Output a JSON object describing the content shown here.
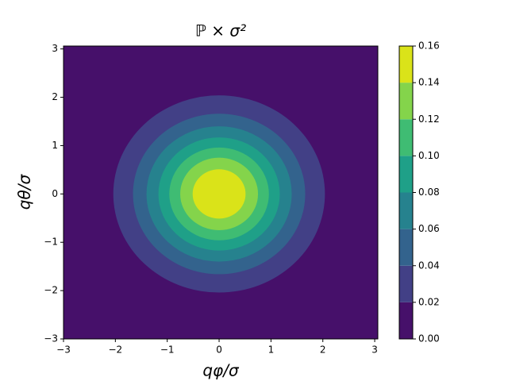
{
  "chart_data": {
    "type": "contourf",
    "title": "ℙ × σ²",
    "xlabel": "qφ/σ",
    "ylabel": "qθ/σ",
    "xlim": [
      -3,
      3.06
    ],
    "ylim": [
      -3,
      3.06
    ],
    "xticks": [
      {
        "value": -3,
        "label": "−3"
      },
      {
        "value": -2,
        "label": "−2"
      },
      {
        "value": -1,
        "label": "−1"
      },
      0,
      1,
      2,
      3
    ],
    "yticks": [
      {
        "value": -3,
        "label": "−3"
      },
      {
        "value": -2,
        "label": "−2"
      },
      {
        "value": -1,
        "label": "−1"
      },
      0,
      1,
      2,
      3
    ],
    "center": [
      0,
      0
    ],
    "levels": [
      {
        "value": 0,
        "label": "0.00"
      },
      {
        "value": 0.02,
        "label": "0.02"
      },
      {
        "value": 0.04,
        "label": "0.04"
      },
      {
        "value": 0.06,
        "label": "0.06"
      },
      {
        "value": 0.08,
        "label": "0.08"
      },
      {
        "value": 0.1,
        "label": "0.10"
      },
      {
        "value": 0.12,
        "label": "0.12"
      },
      {
        "value": 0.14,
        "label": "0.14"
      },
      {
        "value": 0.16,
        "label": "0.16"
      }
    ],
    "radii": [
      2.04,
      1.66,
      1.4,
      1.17,
      0.96,
      0.75,
      0.51
    ],
    "colors": [
      "#46106a",
      "#424086",
      "#33638d",
      "#26828e",
      "#1fa088",
      "#3fbc73",
      "#84d44b",
      "#dae319"
    ]
  }
}
